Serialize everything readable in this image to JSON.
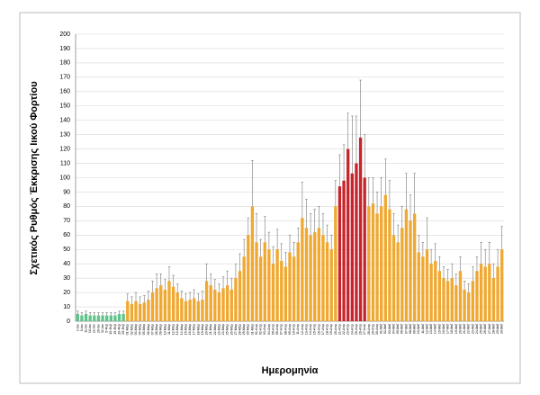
{
  "chart_data": {
    "type": "bar",
    "ylabel": "Σχετικός Ρυθμός Έκκρισης Ιικού Φορτίου",
    "xlabel": "Ημερομηνία",
    "categories": [
      "1-Ιαν",
      "6-Ιαν",
      "11-Ιαν",
      "16-Ιαν",
      "21-Ιαν",
      "26-Ιαν",
      "31-Ιαν",
      "5-Φεβ",
      "10-Φεβ",
      "15-Φεβ",
      "20-Φεβ",
      "25-Φεβ",
      "01-Μαρ",
      "02-Μαρ",
      "03-Μαρ",
      "04-Μαρ",
      "05-Μαρ",
      "06-Μαρ",
      "07-Μαρ",
      "08-Μαρ",
      "09-Μαρ",
      "10-Μαρ",
      "11-Μαρ",
      "12-Μαρ",
      "13-Μαρ",
      "14-Μαρ",
      "15-Μαρ",
      "16-Μαρ",
      "17-Μαρ",
      "18-Μαρ",
      "19-Μαρ",
      "20-Μαρ",
      "21-Μαρ",
      "22-Μαρ",
      "23-Μαρ",
      "24-Μαρ",
      "25-Μαρ",
      "26-Μαρ",
      "27-Μαρ",
      "28-Μαρ",
      "29-Μαρ",
      "30-Μαρ",
      "31-Μαρ",
      "01-Απρ",
      "02-Απρ",
      "03-Απρ",
      "04-Απρ",
      "05-Απρ",
      "06-Απρ",
      "07-Απρ",
      "08-Απρ",
      "09-Απρ",
      "10-Απρ",
      "11-Απρ",
      "12-Απρ",
      "13-Απρ",
      "14-Απρ",
      "15-Απρ",
      "16-Απρ",
      "17-Απρ",
      "18-Απρ",
      "19-Απρ",
      "20-Απρ",
      "21-Απρ",
      "22-Απρ",
      "23-Απρ",
      "24-Απρ",
      "25-Απρ",
      "26-Απρ",
      "27-Απρ",
      "28-Απρ",
      "29-Απρ",
      "30-Απρ",
      "01-Μαΐ",
      "02-Μαΐ",
      "03-Μαΐ",
      "04-Μαΐ",
      "05-Μαΐ",
      "06-Μαΐ",
      "07-Μαΐ",
      "08-Μαΐ",
      "09-Μαΐ",
      "10-Μαΐ",
      "11-Μαΐ",
      "12-Μαΐ",
      "13-Μαΐ",
      "14-Μαΐ",
      "15-Μαΐ",
      "16-Μαΐ",
      "17-Μαΐ",
      "18-Μαΐ",
      "19-Μαΐ",
      "20-Μαΐ",
      "21-Μαΐ",
      "22-Μαΐ",
      "23-Μαΐ",
      "24-Μαΐ",
      "25-Μαΐ",
      "26-Μαΐ",
      "27-Μαΐ",
      "28-Μαΐ",
      "29-Μαΐ",
      "30-Μαΐ"
    ],
    "series": [
      {
        "values": [
          5,
          4,
          5,
          4,
          4,
          4,
          4,
          4,
          4,
          4,
          5,
          5,
          14,
          12,
          14,
          12,
          13,
          15,
          20,
          23,
          25,
          22,
          28,
          24,
          20,
          16,
          14,
          15,
          16,
          14,
          15,
          28,
          25,
          22,
          20,
          23,
          25,
          22,
          30,
          35,
          45,
          60,
          80,
          55,
          45,
          55,
          50,
          40,
          50,
          42,
          38,
          48,
          45,
          55,
          72,
          65,
          60,
          62,
          65,
          60,
          55,
          50,
          80,
          94,
          98,
          120,
          103,
          110,
          128,
          100,
          80,
          82,
          75,
          80,
          88,
          78,
          60,
          55,
          65,
          78,
          70,
          75,
          48,
          45,
          50,
          40,
          42,
          35,
          30,
          28,
          30,
          25,
          35,
          22,
          20,
          28,
          35,
          40,
          38,
          40,
          30,
          38,
          50
        ],
        "errors": [
          2,
          2,
          2,
          2,
          2,
          2,
          2,
          2,
          2,
          2,
          2,
          2,
          5,
          5,
          6,
          5,
          5,
          6,
          8,
          10,
          8,
          7,
          10,
          8,
          6,
          5,
          5,
          5,
          6,
          5,
          6,
          12,
          8,
          7,
          6,
          8,
          10,
          8,
          10,
          12,
          12,
          12,
          32,
          20,
          12,
          18,
          12,
          12,
          14,
          12,
          10,
          12,
          10,
          10,
          25,
          20,
          15,
          16,
          15,
          15,
          12,
          10,
          18,
          22,
          25,
          25,
          40,
          33,
          40,
          30,
          20,
          18,
          15,
          20,
          25,
          20,
          15,
          12,
          15,
          25,
          18,
          28,
          12,
          10,
          22,
          10,
          12,
          10,
          8,
          8,
          10,
          8,
          10,
          6,
          6,
          10,
          10,
          15,
          12,
          15,
          10,
          12,
          16
        ],
        "colors": [
          "#5fc48a",
          "#5fc48a",
          "#5fc48a",
          "#5fc48a",
          "#5fc48a",
          "#5fc48a",
          "#5fc48a",
          "#5fc48a",
          "#5fc48a",
          "#5fc48a",
          "#5fc48a",
          "#5fc48a",
          "#f0a830",
          "#f0a830",
          "#f0a830",
          "#f0a830",
          "#f0a830",
          "#f0a830",
          "#f0a830",
          "#f0a830",
          "#f0a830",
          "#f0a830",
          "#f0a830",
          "#f0a830",
          "#f0a830",
          "#f0a830",
          "#f0a830",
          "#f0a830",
          "#f0a830",
          "#f0a830",
          "#f0a830",
          "#f0a830",
          "#f0a830",
          "#f0a830",
          "#f0a830",
          "#f0a830",
          "#f0a830",
          "#f0a830",
          "#f0a830",
          "#f0a830",
          "#f0a830",
          "#f0a830",
          "#f0a830",
          "#f0a830",
          "#f0a830",
          "#f0a830",
          "#f0a830",
          "#f0a830",
          "#f0a830",
          "#f0a830",
          "#f0a830",
          "#f0a830",
          "#f0a830",
          "#f0a830",
          "#f0a830",
          "#f0a830",
          "#f0a830",
          "#f0a830",
          "#f0a830",
          "#f0a830",
          "#f0a830",
          "#f0a830",
          "#f0a830",
          "#c8242b",
          "#c8242b",
          "#c8242b",
          "#c8242b",
          "#c8242b",
          "#c8242b",
          "#c8242b",
          "#f0a830",
          "#f0a830",
          "#f0a830",
          "#f0a830",
          "#f0a830",
          "#f0a830",
          "#f0a830",
          "#f0a830",
          "#f0a830",
          "#f0a830",
          "#f0a830",
          "#f0a830",
          "#f0a830",
          "#f0a830",
          "#f0a830",
          "#f0a830",
          "#f0a830",
          "#f0a830",
          "#f0a830",
          "#f0a830",
          "#f0a830",
          "#f0a830",
          "#f0a830",
          "#f0a830",
          "#f0a830",
          "#f0a830",
          "#f0a830",
          "#f0a830",
          "#f0a830",
          "#f0a830",
          "#f0a830",
          "#f0a830",
          "#f0a830"
        ]
      }
    ],
    "ylim": [
      0,
      200
    ],
    "yticks": [
      0,
      10,
      20,
      30,
      40,
      50,
      60,
      70,
      80,
      90,
      100,
      110,
      120,
      130,
      140,
      150,
      160,
      170,
      180,
      190,
      200
    ],
    "grid": true
  }
}
